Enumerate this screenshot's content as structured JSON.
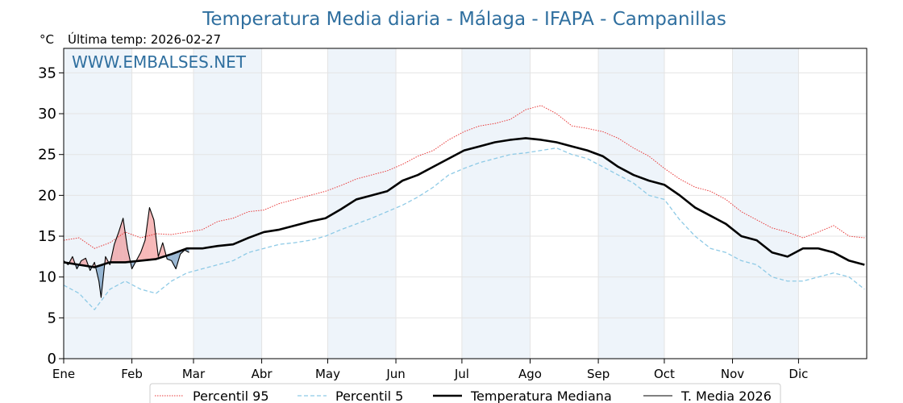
{
  "chart_data": {
    "type": "line",
    "title": "Temperatura Media diaria - Málaga - IFAPA - Campanillas",
    "unit_label": "°C",
    "last_temp_label": "Última temp: 2026-02-27",
    "watermark": "WWW.EMBALSES.NET",
    "ylim": [
      0,
      38
    ],
    "xlim": [
      1,
      366
    ],
    "yticks": [
      0,
      5,
      10,
      15,
      20,
      25,
      30,
      35
    ],
    "months": [
      {
        "label": "Ene",
        "day": 1
      },
      {
        "label": "Feb",
        "day": 32
      },
      {
        "label": "Mar",
        "day": 60
      },
      {
        "label": "Abr",
        "day": 91
      },
      {
        "label": "May",
        "day": 121
      },
      {
        "label": "Jun",
        "day": 152
      },
      {
        "label": "Jul",
        "day": 182
      },
      {
        "label": "Ago",
        "day": 213
      },
      {
        "label": "Sep",
        "day": 244
      },
      {
        "label": "Oct",
        "day": 274
      },
      {
        "label": "Nov",
        "day": 305
      },
      {
        "label": "Dic",
        "day": 335
      }
    ],
    "grid": true,
    "legend_position": "bottom",
    "colors": {
      "p95": "#e83a3a",
      "p5": "#8ecae6",
      "median": "#000000",
      "current": "#000000",
      "above": "#f08080",
      "below": "#4a7fb0",
      "title": "#2f6f9f",
      "band": "#eef4fa"
    },
    "series": [
      {
        "name": "Percentil 95",
        "style": "dotted",
        "x": [
          1,
          8,
          15,
          22,
          29,
          36,
          43,
          50,
          57,
          64,
          71,
          78,
          85,
          92,
          99,
          106,
          113,
          120,
          127,
          134,
          141,
          148,
          155,
          162,
          169,
          176,
          183,
          190,
          197,
          204,
          211,
          218,
          225,
          232,
          239,
          246,
          253,
          260,
          267,
          274,
          281,
          288,
          295,
          302,
          309,
          316,
          323,
          330,
          337,
          344,
          351,
          358,
          365
        ],
        "y": [
          14.5,
          14.8,
          13.5,
          14.2,
          15.5,
          14.8,
          15.3,
          15.2,
          15.5,
          15.8,
          16.8,
          17.2,
          18.0,
          18.2,
          19.0,
          19.5,
          20.0,
          20.5,
          21.2,
          22.0,
          22.5,
          23.0,
          23.8,
          24.8,
          25.5,
          26.8,
          27.8,
          28.5,
          28.8,
          29.3,
          30.5,
          31.0,
          30.0,
          28.5,
          28.2,
          27.8,
          27.0,
          25.8,
          24.8,
          23.3,
          22.0,
          21.0,
          20.5,
          19.5,
          18.0,
          17.0,
          16.0,
          15.5,
          14.8,
          15.5,
          16.3,
          15.0,
          14.8
        ]
      },
      {
        "name": "Percentil 5",
        "style": "dashed",
        "x": [
          1,
          8,
          15,
          22,
          29,
          36,
          43,
          50,
          57,
          64,
          71,
          78,
          85,
          92,
          99,
          106,
          113,
          120,
          127,
          134,
          141,
          148,
          155,
          162,
          169,
          176,
          183,
          190,
          197,
          204,
          211,
          218,
          225,
          232,
          239,
          246,
          253,
          260,
          267,
          274,
          281,
          288,
          295,
          302,
          309,
          316,
          323,
          330,
          337,
          344,
          351,
          358,
          365
        ],
        "y": [
          9.0,
          8.0,
          6.0,
          8.5,
          9.5,
          8.5,
          8.0,
          9.5,
          10.5,
          11.0,
          11.5,
          12.0,
          13.0,
          13.5,
          14.0,
          14.2,
          14.5,
          15.0,
          15.8,
          16.5,
          17.2,
          18.0,
          18.8,
          19.8,
          21.0,
          22.5,
          23.3,
          24.0,
          24.5,
          25.0,
          25.2,
          25.5,
          25.8,
          25.0,
          24.5,
          23.5,
          22.5,
          21.5,
          20.0,
          19.5,
          17.0,
          15.0,
          13.5,
          13.0,
          12.0,
          11.5,
          10.0,
          9.5,
          9.5,
          10.0,
          10.5,
          10.0,
          8.5
        ]
      },
      {
        "name": "Temperatura Mediana",
        "style": "solid-thick",
        "x": [
          1,
          8,
          15,
          22,
          29,
          36,
          43,
          50,
          57,
          64,
          71,
          78,
          85,
          92,
          99,
          106,
          113,
          120,
          127,
          134,
          141,
          148,
          155,
          162,
          169,
          176,
          183,
          190,
          197,
          204,
          211,
          218,
          225,
          232,
          239,
          246,
          253,
          260,
          267,
          274,
          281,
          288,
          295,
          302,
          309,
          316,
          323,
          330,
          337,
          344,
          351,
          358,
          365
        ],
        "y": [
          11.8,
          11.5,
          11.2,
          11.8,
          11.8,
          12.0,
          12.2,
          12.8,
          13.5,
          13.5,
          13.8,
          14.0,
          14.8,
          15.5,
          15.8,
          16.3,
          16.8,
          17.2,
          18.3,
          19.5,
          20.0,
          20.5,
          21.8,
          22.5,
          23.5,
          24.5,
          25.5,
          26.0,
          26.5,
          26.8,
          27.0,
          26.8,
          26.5,
          26.0,
          25.5,
          24.8,
          23.5,
          22.5,
          21.8,
          21.3,
          20.0,
          18.5,
          17.5,
          16.5,
          15.0,
          14.5,
          13.0,
          12.5,
          13.5,
          13.5,
          13.0,
          12.0,
          11.5
        ]
      },
      {
        "name": "T. Media 2026",
        "style": "solid-thin",
        "x": [
          1,
          3,
          5,
          7,
          9,
          11,
          13,
          15,
          17,
          18,
          19,
          20,
          22,
          24,
          26,
          28,
          30,
          32,
          34,
          36,
          38,
          40,
          42,
          44,
          46,
          48,
          50,
          52,
          54,
          56,
          58
        ],
        "y": [
          12.0,
          11.5,
          12.5,
          11.0,
          12.0,
          12.3,
          10.8,
          11.8,
          9.5,
          7.5,
          10.0,
          12.5,
          11.5,
          14.0,
          15.5,
          17.2,
          13.5,
          11.0,
          12.0,
          13.0,
          14.5,
          18.5,
          17.0,
          12.5,
          14.2,
          12.2,
          12.0,
          11.0,
          12.8,
          13.3,
          13.0
        ]
      }
    ]
  }
}
